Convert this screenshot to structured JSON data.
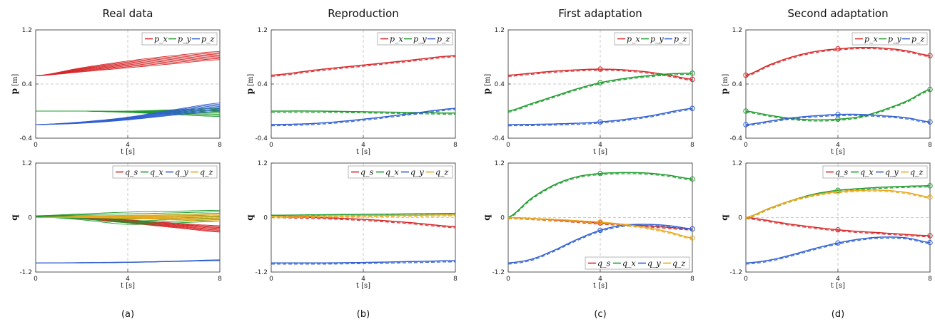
{
  "columns": [
    {
      "title": "Real data",
      "caption": "(a)"
    },
    {
      "title": "Reproduction",
      "caption": "(b)"
    },
    {
      "title": "First adaptation",
      "caption": "(c)"
    },
    {
      "title": "Second adaptation",
      "caption": "(d)"
    }
  ],
  "colors": {
    "red": "#d62728",
    "green": "#1f9a2e",
    "blue": "#2f5fd0",
    "yellow": "#e8a81a",
    "axis": "#444444",
    "grid": "#bbbbbb"
  },
  "chart_data": [
    {
      "type": "line",
      "title": "Real data",
      "ylabel": "p",
      "ylabel_unit": "[m]",
      "xlabel": "t [s]",
      "xlim": [
        0,
        8
      ],
      "ylim": [
        -0.4,
        1.2
      ],
      "xticks": [
        "0",
        "4",
        "8"
      ],
      "yticks": [
        "-0.4",
        "0.4",
        "1.2"
      ],
      "legend": "top-right",
      "legend_labels": [
        "p_x",
        "p_y",
        "p_z"
      ],
      "series": [
        {
          "color": "red",
          "x": [
            0,
            2,
            4,
            6,
            8
          ],
          "y_low": [
            0.52,
            0.58,
            0.64,
            0.7,
            0.76
          ],
          "y_high": [
            0.52,
            0.64,
            0.74,
            0.82,
            0.88
          ],
          "count": 8
        },
        {
          "color": "green",
          "x": [
            0,
            2,
            4,
            6,
            8
          ],
          "y_low": [
            0.0,
            0.0,
            -0.02,
            -0.05,
            -0.08
          ],
          "y_high": [
            0.0,
            0.0,
            0.0,
            0.02,
            0.04
          ],
          "count": 8
        },
        {
          "color": "blue",
          "x": [
            0,
            2,
            4,
            6,
            8
          ],
          "y_low": [
            -0.2,
            -0.18,
            -0.13,
            -0.06,
            0.0
          ],
          "y_high": [
            -0.2,
            -0.16,
            -0.09,
            0.02,
            0.12
          ],
          "count": 8
        }
      ]
    },
    {
      "type": "line",
      "title": "Reproduction",
      "ylabel": "p",
      "ylabel_unit": "[m]",
      "xlabel": "t [s]",
      "xlim": [
        0,
        8
      ],
      "ylim": [
        -0.4,
        1.2
      ],
      "xticks": [
        "0",
        "4",
        "8"
      ],
      "yticks": [
        "-0.4",
        "0.4",
        "1.2"
      ],
      "legend": "top-right",
      "legend_labels": [
        "p_x",
        "p_y",
        "p_z"
      ],
      "series": [
        {
          "color": "red",
          "x": [
            0,
            2,
            4,
            6,
            8
          ],
          "y": [
            0.53,
            0.61,
            0.68,
            0.75,
            0.82
          ]
        },
        {
          "color": "green",
          "x": [
            0,
            2,
            4,
            6,
            8
          ],
          "y": [
            0.0,
            0.0,
            -0.01,
            -0.02,
            -0.03
          ]
        },
        {
          "color": "blue",
          "x": [
            0,
            2,
            4,
            6,
            8
          ],
          "y": [
            -0.2,
            -0.18,
            -0.12,
            -0.04,
            0.04
          ]
        }
      ]
    },
    {
      "type": "line",
      "title": "First adaptation",
      "ylabel": "p",
      "ylabel_unit": "[m]",
      "xlabel": "t [s]",
      "xlim": [
        0,
        8
      ],
      "ylim": [
        -0.4,
        1.2
      ],
      "xticks": [
        "0",
        "4",
        "8"
      ],
      "yticks": [
        "-0.4",
        "0.4",
        "1.2"
      ],
      "legend": "top-right",
      "legend_labels": [
        "p_x",
        "p_y",
        "p_z"
      ],
      "series": [
        {
          "color": "red",
          "x": [
            0,
            1,
            2,
            3,
            4,
            5,
            6,
            7,
            8
          ],
          "y": [
            0.53,
            0.56,
            0.59,
            0.61,
            0.62,
            0.61,
            0.58,
            0.53,
            0.47
          ],
          "markers": [
            4,
            8
          ]
        },
        {
          "color": "green",
          "x": [
            0,
            1,
            2,
            3,
            4,
            5,
            6,
            7,
            8
          ],
          "y": [
            0.0,
            0.11,
            0.22,
            0.33,
            0.42,
            0.48,
            0.52,
            0.55,
            0.56
          ],
          "markers": [
            4,
            8
          ]
        },
        {
          "color": "blue",
          "x": [
            0,
            2,
            4,
            6,
            8
          ],
          "y": [
            -0.2,
            -0.19,
            -0.16,
            -0.08,
            0.04
          ],
          "markers": [
            4,
            8
          ]
        }
      ]
    },
    {
      "type": "line",
      "title": "Second adaptation",
      "ylabel": "p",
      "ylabel_unit": "[m]",
      "xlabel": "t [s]",
      "xlim": [
        0,
        8
      ],
      "ylim": [
        -0.4,
        1.2
      ],
      "xticks": [
        "0",
        "4",
        "8"
      ],
      "yticks": [
        "-0.4",
        "0.4",
        "1.2"
      ],
      "legend": "top-right",
      "legend_labels": [
        "p_x",
        "p_y",
        "p_z"
      ],
      "series": [
        {
          "color": "red",
          "x": [
            0,
            1,
            2,
            3,
            4,
            5,
            6,
            7,
            8
          ],
          "y": [
            0.53,
            0.68,
            0.8,
            0.88,
            0.92,
            0.94,
            0.93,
            0.89,
            0.82
          ],
          "markers": [
            0,
            4,
            8
          ]
        },
        {
          "color": "green",
          "x": [
            0,
            1,
            2,
            3,
            4,
            5,
            6,
            7,
            8
          ],
          "y": [
            0.0,
            -0.06,
            -0.11,
            -0.13,
            -0.12,
            -0.08,
            0.02,
            0.15,
            0.32
          ],
          "markers": [
            0,
            4,
            8
          ]
        },
        {
          "color": "blue",
          "x": [
            0,
            1,
            2,
            3,
            4,
            5,
            6,
            7,
            8
          ],
          "y": [
            -0.2,
            -0.15,
            -0.1,
            -0.07,
            -0.05,
            -0.05,
            -0.07,
            -0.1,
            -0.16
          ],
          "markers": [
            0,
            4,
            8
          ]
        }
      ]
    },
    {
      "type": "line",
      "ylabel": "q",
      "xlabel": "t [s]",
      "xlim": [
        0,
        8
      ],
      "ylim": [
        -1.2,
        1.2
      ],
      "xticks": [
        "0",
        "4",
        "8"
      ],
      "yticks": [
        "-1.2",
        "0",
        "1.2"
      ],
      "legend": "top-right",
      "legend_labels": [
        "q_s",
        "q_x",
        "q_y",
        "q_z"
      ],
      "series": [
        {
          "color": "red",
          "x": [
            0,
            2,
            4,
            6,
            8
          ],
          "y_low": [
            0.02,
            -0.02,
            -0.12,
            -0.22,
            -0.32
          ],
          "y_high": [
            0.02,
            0.0,
            -0.05,
            -0.12,
            -0.18
          ],
          "count": 8
        },
        {
          "color": "green",
          "x": [
            0,
            2,
            4,
            6,
            8
          ],
          "y_low": [
            0.02,
            -0.05,
            -0.15,
            -0.12,
            -0.08
          ],
          "y_high": [
            0.04,
            0.08,
            0.12,
            0.14,
            0.16
          ],
          "count": 8
        },
        {
          "color": "blue",
          "x": [
            0,
            2,
            4,
            6,
            8
          ],
          "y_low": [
            -1.0,
            -1.0,
            -0.99,
            -0.97,
            -0.95
          ],
          "y_high": [
            -1.0,
            -0.99,
            -0.98,
            -0.96,
            -0.93
          ],
          "count": 4
        },
        {
          "color": "yellow",
          "x": [
            0,
            2,
            4,
            6,
            8
          ],
          "y_low": [
            0.0,
            0.0,
            -0.02,
            -0.05,
            -0.08
          ],
          "y_high": [
            0.0,
            0.03,
            0.05,
            0.06,
            0.08
          ],
          "count": 8
        }
      ]
    },
    {
      "type": "line",
      "ylabel": "q",
      "xlabel": "t [s]",
      "xlim": [
        0,
        8
      ],
      "ylim": [
        -1.2,
        1.2
      ],
      "xticks": [
        "0",
        "4",
        "8"
      ],
      "yticks": [
        "-1.2",
        "0",
        "1.2"
      ],
      "legend": "top-right",
      "legend_labels": [
        "q_s",
        "q_x",
        "q_y",
        "q_z"
      ],
      "series": [
        {
          "color": "red",
          "x": [
            0,
            2,
            4,
            6,
            8
          ],
          "y": [
            0.02,
            0.0,
            -0.04,
            -0.11,
            -0.2
          ]
        },
        {
          "color": "green",
          "x": [
            0,
            2,
            4,
            6,
            8
          ],
          "y": [
            0.05,
            0.06,
            0.07,
            0.08,
            0.09
          ]
        },
        {
          "color": "blue",
          "x": [
            0,
            2,
            4,
            6,
            8
          ],
          "y": [
            -1.0,
            -1.0,
            -0.99,
            -0.97,
            -0.95
          ]
        },
        {
          "color": "yellow",
          "x": [
            0,
            2,
            4,
            6,
            8
          ],
          "y": [
            0.02,
            0.03,
            0.04,
            0.05,
            0.06
          ]
        }
      ]
    },
    {
      "type": "line",
      "ylabel": "q",
      "xlabel": "t [s]",
      "xlim": [
        0,
        8
      ],
      "ylim": [
        -1.2,
        1.2
      ],
      "xticks": [
        "0",
        "4",
        "8"
      ],
      "yticks": [
        "-1.2",
        "0",
        "1.2"
      ],
      "legend": "bottom-right",
      "legend_labels": [
        "q_s",
        "q_x",
        "q_y",
        "q_z"
      ],
      "series": [
        {
          "color": "red",
          "x": [
            0,
            2,
            4,
            6,
            8
          ],
          "y": [
            0.0,
            -0.05,
            -0.12,
            -0.18,
            -0.25
          ],
          "markers": [
            4,
            8
          ]
        },
        {
          "color": "green",
          "x": [
            0,
            1,
            2,
            3,
            4,
            5,
            6,
            7,
            8
          ],
          "y": [
            0.0,
            0.42,
            0.72,
            0.9,
            0.97,
            0.99,
            0.98,
            0.93,
            0.85
          ],
          "markers": [
            4,
            8
          ]
        },
        {
          "color": "blue",
          "x": [
            0,
            1,
            2,
            3,
            4,
            5,
            6,
            7,
            8
          ],
          "y": [
            -1.0,
            -0.92,
            -0.72,
            -0.48,
            -0.28,
            -0.17,
            -0.15,
            -0.18,
            -0.25
          ],
          "markers": [
            4,
            8
          ]
        },
        {
          "color": "yellow",
          "x": [
            0,
            1,
            2,
            3,
            4,
            5,
            6,
            7,
            8
          ],
          "y": [
            0.0,
            -0.02,
            -0.04,
            -0.07,
            -0.1,
            -0.15,
            -0.22,
            -0.32,
            -0.45
          ],
          "markers": [
            4,
            8
          ]
        }
      ]
    },
    {
      "type": "line",
      "ylabel": "q",
      "xlabel": "t [s]",
      "xlim": [
        0,
        8
      ],
      "ylim": [
        -1.2,
        1.2
      ],
      "xticks": [
        "0",
        "4",
        "8"
      ],
      "yticks": [
        "-1.2",
        "0",
        "1.2"
      ],
      "legend": "top-right",
      "legend_labels": [
        "q_s",
        "q_x",
        "q_y",
        "q_z"
      ],
      "series": [
        {
          "color": "red",
          "x": [
            0,
            2,
            4,
            6,
            8
          ],
          "y": [
            0.0,
            -0.15,
            -0.27,
            -0.34,
            -0.4
          ],
          "markers": [
            4,
            8
          ]
        },
        {
          "color": "green",
          "x": [
            0,
            1,
            2,
            3,
            4,
            5,
            6,
            7,
            8
          ],
          "y": [
            0.0,
            0.2,
            0.38,
            0.52,
            0.6,
            0.64,
            0.67,
            0.69,
            0.7
          ],
          "markers": [
            4,
            8
          ]
        },
        {
          "color": "blue",
          "x": [
            0,
            1,
            2,
            3,
            4,
            5,
            6,
            7,
            8
          ],
          "y": [
            -1.0,
            -0.94,
            -0.82,
            -0.68,
            -0.56,
            -0.47,
            -0.43,
            -0.45,
            -0.55
          ],
          "markers": [
            4,
            8
          ]
        },
        {
          "color": "yellow",
          "x": [
            0,
            1,
            2,
            3,
            4,
            5,
            6,
            7,
            8
          ],
          "y": [
            0.0,
            0.2,
            0.38,
            0.5,
            0.57,
            0.6,
            0.6,
            0.55,
            0.45
          ],
          "markers": [
            4,
            8
          ]
        }
      ]
    }
  ]
}
